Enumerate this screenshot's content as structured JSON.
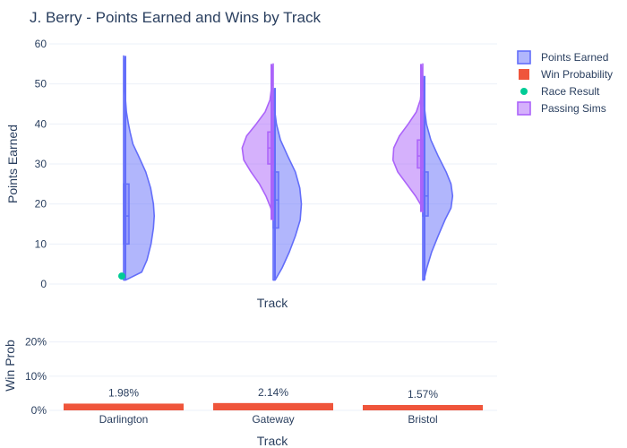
{
  "title": "J. Berry - Points Earned and Wins by Track",
  "colors": {
    "points": "#636efa",
    "passing": "#ab63fa",
    "win": "#ef553b",
    "race": "#00cc96",
    "grid": "#ebf0f8"
  },
  "legend": [
    {
      "name": "Points Earned",
      "symbol": "box",
      "color": "#636efa"
    },
    {
      "name": "Win Probability",
      "symbol": "square",
      "color": "#ef553b"
    },
    {
      "name": "Race Result",
      "symbol": "dot",
      "color": "#00cc96"
    },
    {
      "name": "Passing Sims",
      "symbol": "box",
      "color": "#ab63fa"
    }
  ],
  "chart_data": [
    {
      "type": "violin",
      "title": "J. Berry - Points Earned and Wins by Track",
      "xlabel": "Track",
      "ylabel": "Points Earned",
      "ylim": [
        0,
        60
      ],
      "yticks": [
        0,
        10,
        20,
        30,
        40,
        50,
        60
      ],
      "categories": [
        "Darlington",
        "Gateway",
        "Bristol"
      ],
      "series": [
        {
          "name": "Points Earned",
          "side": "positive",
          "data": [
            {
              "category": "Darlington",
              "min": 1,
              "max": 57,
              "q1": 10,
              "median": 17,
              "q3": 25,
              "density": [
                [
                  1,
                  0.05
                ],
                [
                  3,
                  0.45
                ],
                [
                  6,
                  0.58
                ],
                [
                  10,
                  0.68
                ],
                [
                  14,
                  0.74
                ],
                [
                  17,
                  0.76
                ],
                [
                  20,
                  0.74
                ],
                [
                  24,
                  0.67
                ],
                [
                  28,
                  0.55
                ],
                [
                  32,
                  0.37
                ],
                [
                  35,
                  0.23
                ],
                [
                  38,
                  0.16
                ],
                [
                  40,
                  0.12
                ],
                [
                  43,
                  0.07
                ],
                [
                  47,
                  0.04
                ],
                [
                  52,
                  0.02
                ],
                [
                  57,
                  0.0
                ]
              ]
            },
            {
              "category": "Gateway",
              "min": 1,
              "max": 49,
              "q1": 14,
              "median": 21,
              "q3": 28,
              "density": [
                [
                  1,
                  0.05
                ],
                [
                  4,
                  0.22
                ],
                [
                  8,
                  0.4
                ],
                [
                  12,
                  0.55
                ],
                [
                  16,
                  0.67
                ],
                [
                  20,
                  0.7
                ],
                [
                  24,
                  0.66
                ],
                [
                  28,
                  0.55
                ],
                [
                  32,
                  0.36
                ],
                [
                  36,
                  0.18
                ],
                [
                  40,
                  0.08
                ],
                [
                  44,
                  0.03
                ],
                [
                  49,
                  0.0
                ]
              ]
            },
            {
              "category": "Bristol",
              "min": 1,
              "max": 52,
              "q1": 17,
              "median": 22,
              "q3": 28,
              "density": [
                [
                  1,
                  0.03
                ],
                [
                  4,
                  0.1
                ],
                [
                  8,
                  0.22
                ],
                [
                  12,
                  0.38
                ],
                [
                  16,
                  0.55
                ],
                [
                  19,
                  0.7
                ],
                [
                  22,
                  0.74
                ],
                [
                  25,
                  0.7
                ],
                [
                  28,
                  0.58
                ],
                [
                  32,
                  0.38
                ],
                [
                  36,
                  0.2
                ],
                [
                  40,
                  0.09
                ],
                [
                  45,
                  0.03
                ],
                [
                  52,
                  0.0
                ]
              ]
            }
          ]
        },
        {
          "name": "Passing Sims",
          "side": "negative",
          "data": [
            {
              "category": "Gateway",
              "min": 16,
              "max": 55,
              "q1": 30,
              "median": 34,
              "q3": 38,
              "density": [
                [
                  16,
                  0.0
                ],
                [
                  19,
                  0.06
                ],
                [
                  22,
                  0.18
                ],
                [
                  25,
                  0.34
                ],
                [
                  28,
                  0.55
                ],
                [
                  31,
                  0.73
                ],
                [
                  34,
                  0.77
                ],
                [
                  37,
                  0.66
                ],
                [
                  40,
                  0.42
                ],
                [
                  43,
                  0.2
                ],
                [
                  46,
                  0.08
                ],
                [
                  50,
                  0.03
                ],
                [
                  55,
                  0.0
                ]
              ]
            },
            {
              "category": "Bristol",
              "min": 18,
              "max": 55,
              "q1": 29,
              "median": 32,
              "q3": 36,
              "density": [
                [
                  18,
                  0.0
                ],
                [
                  20,
                  0.06
                ],
                [
                  22,
                  0.18
                ],
                [
                  25,
                  0.4
                ],
                [
                  28,
                  0.62
                ],
                [
                  31,
                  0.74
                ],
                [
                  34,
                  0.72
                ],
                [
                  37,
                  0.58
                ],
                [
                  40,
                  0.36
                ],
                [
                  43,
                  0.16
                ],
                [
                  46,
                  0.06
                ],
                [
                  50,
                  0.02
                ],
                [
                  55,
                  0.0
                ]
              ]
            }
          ]
        },
        {
          "name": "Race Result",
          "type": "scatter",
          "points": [
            {
              "category": "Darlington",
              "y": 2
            }
          ]
        }
      ]
    },
    {
      "type": "bar",
      "xlabel": "Track",
      "ylabel": "Win Prob",
      "ylim": [
        0,
        0.22
      ],
      "yticks": [
        0,
        0.1,
        0.2
      ],
      "ytick_labels": [
        "0%",
        "10%",
        "20%"
      ],
      "categories": [
        "Darlington",
        "Gateway",
        "Bristol"
      ],
      "series": [
        {
          "name": "Win Probability",
          "values": [
            0.0198,
            0.0214,
            0.0157
          ],
          "labels": [
            "1.98%",
            "2.14%",
            "1.57%"
          ]
        }
      ]
    }
  ]
}
